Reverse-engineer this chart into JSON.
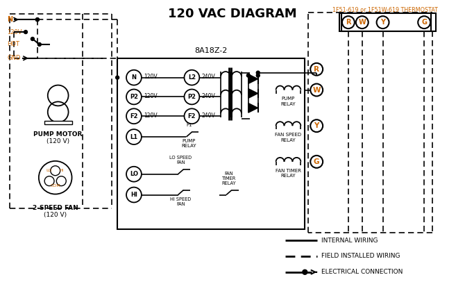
{
  "title": "120 VAC DIAGRAM",
  "bg_color": "#ffffff",
  "black": "#000000",
  "orange": "#cc6600",
  "thermostat_label": "1F51-619 or 1F51W-619 THERMOSTAT",
  "controller_label": "8A18Z-2",
  "pump_motor_label": "PUMP MOTOR",
  "pump_motor_v": "(120 V)",
  "fan_label": "2-SPEED FAN",
  "fan_v": "(120 V)",
  "therm_terminals": [
    "R",
    "W",
    "Y",
    "G"
  ],
  "left_terms": [
    [
      "N",
      "120V"
    ],
    [
      "P2",
      "120V"
    ],
    [
      "F2",
      "120V"
    ]
  ],
  "right_terms": [
    [
      "L2",
      "240V"
    ],
    [
      "P2",
      "240V"
    ],
    [
      "F2",
      "240V"
    ]
  ],
  "legend": [
    {
      "label": "INTERNAL WIRING",
      "style": "solid"
    },
    {
      "label": "FIELD INSTALLED WIRING",
      "style": "dashed"
    },
    {
      "label": "ELECTRICAL CONNECTION",
      "style": "dot_arrow"
    }
  ]
}
